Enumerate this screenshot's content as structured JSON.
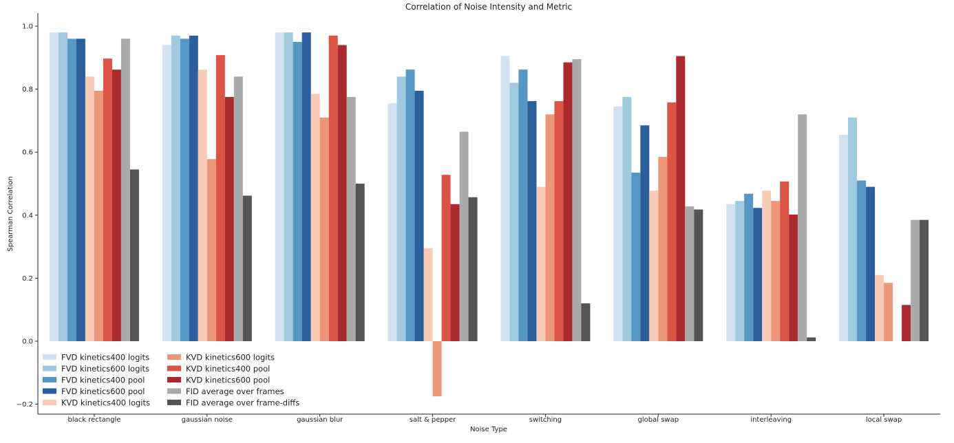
{
  "chart_data": {
    "type": "bar",
    "title": "Correlation of Noise Intensity and Metric",
    "xlabel": "Noise Type",
    "ylabel": "Spearman Correlation",
    "ylim": [
      -0.22,
      1.05
    ],
    "yticks": [
      -0.2,
      0.0,
      0.2,
      0.4,
      0.6,
      0.8,
      1.0
    ],
    "ytick_labels": [
      "−0.2",
      "0.0",
      "0.2",
      "0.4",
      "0.6",
      "0.8",
      "1.0"
    ],
    "grid": false,
    "legend_position": "bottom-left",
    "categories": [
      "black rectangle",
      "gaussian noise",
      "gaussian blur",
      "salt & pepper",
      "switching",
      "global swap",
      "interleaving",
      "local swap"
    ],
    "series": [
      {
        "name": "FVD kinetics400 logits",
        "color": "#d2e2f2",
        "values": [
          0.98,
          0.94,
          0.98,
          0.755,
          0.905,
          0.745,
          0.435,
          0.655
        ]
      },
      {
        "name": "FVD kinetics600 logits",
        "color": "#9ec9df",
        "values": [
          0.98,
          0.97,
          0.98,
          0.84,
          0.82,
          0.775,
          0.445,
          0.71
        ]
      },
      {
        "name": "FVD kinetics400 pool",
        "color": "#5797c5",
        "values": [
          0.96,
          0.96,
          0.95,
          0.862,
          0.862,
          0.535,
          0.468,
          0.51
        ]
      },
      {
        "name": "FVD kinetics600 pool",
        "color": "#2a5f9b",
        "values": [
          0.96,
          0.97,
          0.98,
          0.795,
          0.762,
          0.685,
          0.423,
          0.49
        ]
      },
      {
        "name": "KVD kinetics400 logits",
        "color": "#f8cbb6",
        "values": [
          0.84,
          0.862,
          0.785,
          0.295,
          0.49,
          0.478,
          0.478,
          0.21
        ]
      },
      {
        "name": "KVD kinetics600 logits",
        "color": "#ec9779",
        "values": [
          0.795,
          0.578,
          0.71,
          -0.175,
          0.72,
          0.585,
          0.445,
          0.185
        ]
      },
      {
        "name": "KVD kinetics400 pool",
        "color": "#dc5445",
        "values": [
          0.897,
          0.908,
          0.97,
          0.528,
          0.762,
          0.758,
          0.507,
          0.0
        ]
      },
      {
        "name": "KVD kinetics600 pool",
        "color": "#aa2a2e",
        "values": [
          0.862,
          0.775,
          0.94,
          0.435,
          0.885,
          0.905,
          0.402,
          0.115
        ]
      },
      {
        "name": "FID average over frames",
        "color": "#aaaaaa",
        "values": [
          0.96,
          0.84,
          0.775,
          0.665,
          0.895,
          0.428,
          0.72,
          0.385
        ]
      },
      {
        "name": "FID average over frame-diffs",
        "color": "#545454",
        "values": [
          0.545,
          0.462,
          0.5,
          0.457,
          0.12,
          0.418,
          0.012,
          0.385
        ]
      }
    ]
  }
}
